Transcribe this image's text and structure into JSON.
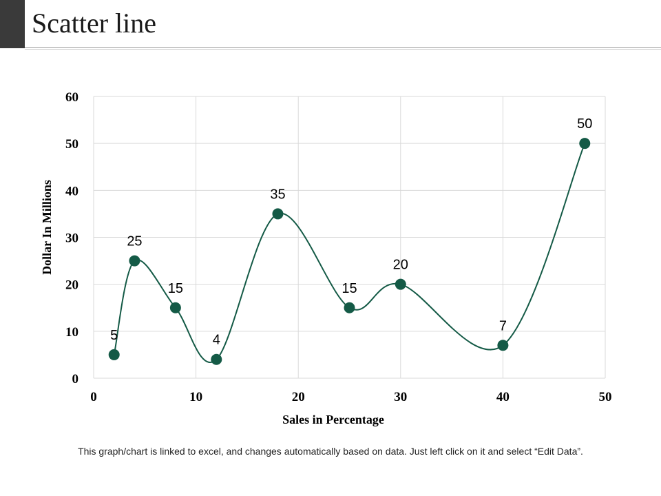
{
  "slide": {
    "title": "Scatter line",
    "footer_note": "This graph/chart is linked to excel, and changes automatically  based on data. Just left click on it and select “Edit Data”."
  },
  "colors": {
    "series": "#145a46",
    "grid": "#d9d9d9",
    "accent_bar": "#3a3a3a"
  },
  "chart_data": {
    "type": "scatter",
    "line_style": "smooth",
    "markers": true,
    "xlabel": "Sales in Percentage",
    "ylabel": "Dollar In Millions",
    "xlim": [
      0,
      50
    ],
    "ylim": [
      0,
      60
    ],
    "xticks": [
      0,
      10,
      20,
      30,
      40,
      50
    ],
    "yticks": [
      0,
      10,
      20,
      30,
      40,
      50,
      60
    ],
    "grid": true,
    "legend": "none",
    "series": [
      {
        "x": [
          2,
          4,
          8,
          12,
          18,
          25,
          30,
          40,
          48
        ],
        "y": [
          5,
          25,
          15,
          4,
          35,
          15,
          20,
          7,
          50
        ],
        "labels": [
          "5",
          "25",
          "15",
          "4",
          "35",
          "15",
          "20",
          "7",
          "50"
        ]
      }
    ]
  }
}
